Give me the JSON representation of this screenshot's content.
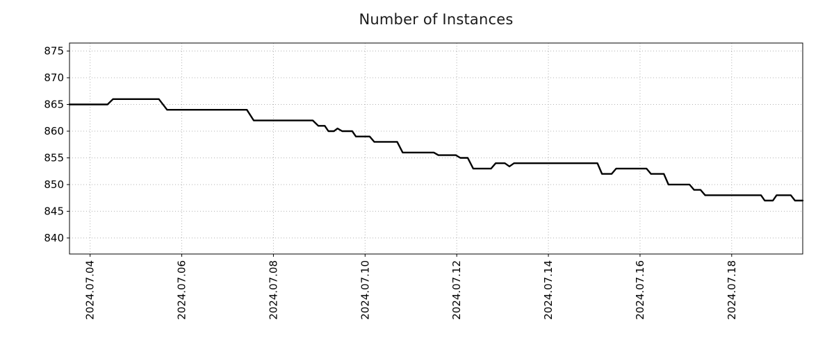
{
  "chart_data": {
    "type": "line",
    "title": "Number of Instances",
    "xlabel": "",
    "ylabel": "",
    "x_unit": "date (day of July 2024, decimal)",
    "xlim": [
      3.55,
      19.55
    ],
    "ylim": [
      837.0,
      876.5
    ],
    "x_ticks": [
      4,
      6,
      8,
      10,
      12,
      14,
      16,
      18
    ],
    "x_tick_labels": [
      "2024.07.04",
      "2024.07.06",
      "2024.07.08",
      "2024.07.10",
      "2024.07.12",
      "2024.07.14",
      "2024.07.16",
      "2024.07.18"
    ],
    "y_ticks": [
      840,
      845,
      850,
      855,
      860,
      865,
      870,
      875
    ],
    "y_tick_labels": [
      "840",
      "845",
      "850",
      "855",
      "860",
      "865",
      "870",
      "875"
    ],
    "grid": true,
    "grid_style": "dotted",
    "grid_color": "#b0b0b0",
    "border_color": "#000000",
    "text_color": "#000000",
    "line_color": "#000000",
    "line_width": 2.4,
    "legend": "none",
    "series": [
      {
        "name": "instances",
        "points": [
          [
            3.55,
            865
          ],
          [
            4.38,
            865
          ],
          [
            4.5,
            866
          ],
          [
            5.5,
            866
          ],
          [
            5.68,
            864
          ],
          [
            7.42,
            864
          ],
          [
            7.57,
            862
          ],
          [
            8.86,
            862
          ],
          [
            8.98,
            861
          ],
          [
            9.12,
            861
          ],
          [
            9.2,
            860
          ],
          [
            9.32,
            860
          ],
          [
            9.4,
            860.5
          ],
          [
            9.5,
            860
          ],
          [
            9.72,
            860
          ],
          [
            9.8,
            859
          ],
          [
            10.1,
            859
          ],
          [
            10.2,
            858
          ],
          [
            10.7,
            858
          ],
          [
            10.82,
            856
          ],
          [
            11.5,
            856
          ],
          [
            11.6,
            855.5
          ],
          [
            11.98,
            855.5
          ],
          [
            12.08,
            855
          ],
          [
            12.24,
            855
          ],
          [
            12.36,
            853
          ],
          [
            12.75,
            853
          ],
          [
            12.85,
            854
          ],
          [
            13.05,
            854
          ],
          [
            13.15,
            853.4
          ],
          [
            13.25,
            854
          ],
          [
            15.07,
            854
          ],
          [
            15.17,
            852
          ],
          [
            15.38,
            852
          ],
          [
            15.48,
            853
          ],
          [
            16.14,
            853
          ],
          [
            16.24,
            852
          ],
          [
            16.52,
            852
          ],
          [
            16.62,
            850
          ],
          [
            17.08,
            850
          ],
          [
            17.18,
            849
          ],
          [
            17.32,
            849
          ],
          [
            17.42,
            848
          ],
          [
            18.64,
            848
          ],
          [
            18.72,
            847
          ],
          [
            18.9,
            847
          ],
          [
            18.98,
            848
          ],
          [
            19.29,
            848
          ],
          [
            19.38,
            847
          ],
          [
            19.55,
            847
          ]
        ]
      }
    ]
  }
}
